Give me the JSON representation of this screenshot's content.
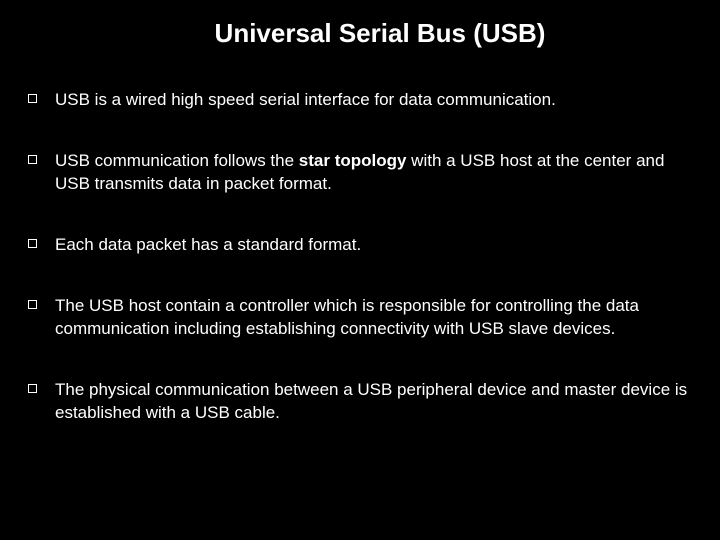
{
  "title": "Universal Serial Bus (USB)",
  "bullets": {
    "b0": "USB is a wired high speed serial interface for data communication.",
    "b1_pre": "USB  communication follows the ",
    "b1_bold": "star topology",
    "b1_post": " with a USB host at the center and USB transmits data in  packet format.",
    "b2": "Each data packet has a standard format.",
    "b3": "The USB host contain a  controller which is responsible for controlling the data communication including establishing connectivity with USB slave devices.",
    "b4": "The physical communication between a USB peripheral device and master device is established with a USB cable."
  },
  "colors": {
    "background": "#000000",
    "text": "#ffffff",
    "bullet_border": "#ffffff"
  },
  "typography": {
    "title_fontsize": 26,
    "title_weight": "bold",
    "body_fontsize": 17,
    "font_family": "Arial"
  }
}
